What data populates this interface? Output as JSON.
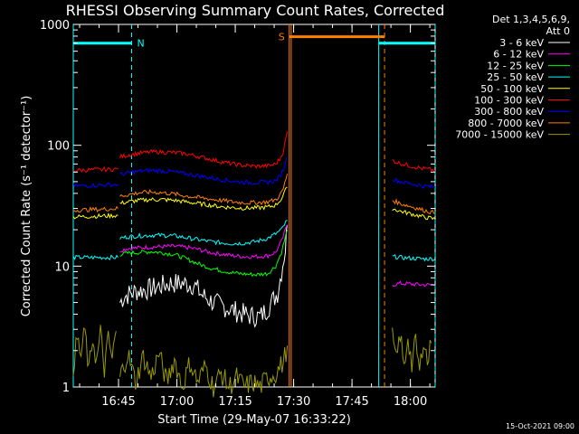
{
  "chart_data": {
    "type": "line",
    "title": "RHESSI Observing Summary Count Rates, Corrected",
    "xlabel": "Start Time (29-May-07 16:33:22)",
    "ylabel": "Corrected Count Rate (s⁻¹ detector⁻¹)",
    "yscale": "log",
    "ylim": [
      1,
      1000
    ],
    "xlim_minutes": [
      0,
      93
    ],
    "x_ticks": [
      {
        "label": "16:45",
        "t": 11.63
      },
      {
        "label": "17:00",
        "t": 26.63
      },
      {
        "label": "17:15",
        "t": 41.63
      },
      {
        "label": "17:30",
        "t": 56.63
      },
      {
        "label": "17:45",
        "t": 71.63
      },
      {
        "label": "18:00",
        "t": 86.63
      }
    ],
    "y_ticks": [
      {
        "label": "1",
        "v": 1
      },
      {
        "label": "10",
        "v": 10
      },
      {
        "label": "100",
        "v": 100
      },
      {
        "label": "1000",
        "v": 1000
      }
    ],
    "legend": {
      "header": [
        "Det 1,3,4,5,6,9,",
        "Att 0"
      ],
      "placement": "right"
    },
    "series": [
      {
        "name": "3 - 6 keV",
        "color": "#ffffff",
        "segments": [
          {
            "x": [
              12,
              13,
              16,
              19,
              22,
              25,
              28,
              31,
              33,
              36,
              39,
              42,
              45,
              48,
              50,
              52.5,
              53.5,
              54.5,
              55
            ],
            "y": [
              5,
              5.6,
              6.2,
              6.4,
              6.8,
              7.2,
              7.2,
              7,
              5.8,
              5,
              4.6,
              4.2,
              3.9,
              3.8,
              4.5,
              6,
              9,
              14,
              22
            ]
          }
        ]
      },
      {
        "name": "6 - 12 keV",
        "color": "#ff00ff",
        "segments": [
          {
            "x": [
              12,
              14,
              17,
              20,
              23,
              26,
              29,
              32,
              35,
              38,
              41,
              44,
              47,
              50,
              52,
              53.5,
              55
            ],
            "y": [
              13.5,
              14,
              14.2,
              14.4,
              14.5,
              14.6,
              14.3,
              13.8,
              13,
              12.6,
              12.2,
              12,
              12,
              12.2,
              13,
              16,
              22
            ]
          },
          {
            "x": [
              82,
              84,
              87,
              90,
              93
            ],
            "y": [
              7,
              7.2,
              7.1,
              7,
              7
            ]
          }
        ]
      },
      {
        "name": "12 - 25 keV",
        "color": "#00ff00",
        "segments": [
          {
            "x": [
              12,
              14,
              17,
              20,
              23,
              26,
              29,
              32,
              35,
              38,
              41,
              44,
              47,
              50,
              52,
              53.5,
              55
            ],
            "y": [
              12.5,
              12.8,
              13,
              13.2,
              12.9,
              12.5,
              11.5,
              10.5,
              9.7,
              9.2,
              8.8,
              8.6,
              8.5,
              8.7,
              10,
              13,
              20
            ]
          }
        ]
      },
      {
        "name": "25 - 50 keV",
        "color": "#00ffff",
        "segments": [
          {
            "x": [
              0,
              4,
              8,
              11.5
            ],
            "y": [
              11.8,
              11.8,
              11.8,
              11.8
            ]
          },
          {
            "x": [
              12,
              14,
              17,
              20,
              23,
              26,
              29,
              32,
              35,
              38,
              41,
              44,
              47,
              50,
              52,
              53.5,
              55
            ],
            "y": [
              17,
              17.5,
              17.8,
              18,
              18,
              17.8,
              17.2,
              16.6,
              16,
              15.6,
              15.4,
              15.5,
              16,
              17,
              18.5,
              20,
              24
            ]
          },
          {
            "x": [
              82,
              84,
              87,
              90,
              93
            ],
            "y": [
              12,
              11.8,
              11.6,
              11.5,
              11.5
            ]
          }
        ]
      },
      {
        "name": "50 - 100 keV",
        "color": "#ffff00",
        "segments": [
          {
            "x": [
              0,
              4,
              8,
              11.5
            ],
            "y": [
              25.5,
              25.8,
              26,
              26.3
            ]
          },
          {
            "x": [
              12,
              14,
              17,
              20,
              23,
              26,
              29,
              32,
              35,
              38,
              41,
              44,
              47,
              50,
              52,
              53.5,
              55
            ],
            "y": [
              33,
              34,
              35,
              35.6,
              35.5,
              35,
              34,
              33,
              32,
              31,
              30.5,
              30.2,
              30.3,
              30.8,
              32,
              36,
              45
            ]
          },
          {
            "x": [
              82,
              84,
              87,
              90,
              93
            ],
            "y": [
              30,
              28.5,
              27,
              25.5,
              24.5
            ]
          }
        ]
      },
      {
        "name": "100 - 300 keV",
        "color": "#ff0000",
        "segments": [
          {
            "x": [
              0,
              4,
              8,
              11.5
            ],
            "y": [
              62,
              62.5,
              63,
              63.5
            ]
          },
          {
            "x": [
              12,
              14,
              17,
              20,
              23,
              26,
              29,
              32,
              35,
              38,
              41,
              44,
              47,
              50,
              52,
              53,
              54,
              55
            ],
            "y": [
              80,
              83,
              86,
              88,
              88,
              87,
              85,
              81,
              77,
              73,
              70,
              68,
              67,
              67.5,
              70,
              76,
              90,
              130
            ]
          },
          {
            "x": [
              82,
              84,
              87,
              90,
              93
            ],
            "y": [
              75,
              71,
              67,
              64,
              62
            ]
          }
        ]
      },
      {
        "name": "300 - 800 keV",
        "color": "#0000ff",
        "segments": [
          {
            "x": [
              0,
              4,
              8,
              11.5
            ],
            "y": [
              46,
              46.5,
              47,
              47.5
            ]
          },
          {
            "x": [
              12,
              14,
              17,
              20,
              23,
              26,
              29,
              32,
              35,
              38,
              41,
              44,
              47,
              50,
              52,
              53,
              54,
              55
            ],
            "y": [
              57,
              59,
              61,
              62,
              61.5,
              60,
              58,
              56,
              54,
              52,
              50.5,
              49.5,
              49,
              49.5,
              51,
              55,
              63,
              80
            ]
          },
          {
            "x": [
              82,
              84,
              87,
              90,
              93
            ],
            "y": [
              53,
              50,
              48,
              46,
              45
            ]
          }
        ]
      },
      {
        "name": "800 - 7000 keV",
        "color": "#ff8000",
        "segments": [
          {
            "x": [
              0,
              4,
              8,
              11.5
            ],
            "y": [
              29,
              29.3,
              29.6,
              30
            ]
          },
          {
            "x": [
              12,
              14,
              17,
              20,
              23,
              26,
              29,
              32,
              35,
              38,
              41,
              44,
              47,
              50,
              52,
              53,
              54,
              55
            ],
            "y": [
              38,
              39,
              40.5,
              41,
              40.5,
              39.5,
              38,
              37,
              36,
              35,
              34,
              33.5,
              33.5,
              34,
              35.5,
              38,
              44,
              58
            ]
          },
          {
            "x": [
              82,
              84,
              87,
              90,
              93
            ],
            "y": [
              35,
              33,
              31,
              29,
              27.5
            ]
          }
        ]
      },
      {
        "name": "7000 - 15000 keV",
        "color": "#999900",
        "segments": [
          {
            "x": [
              0,
              1,
              2,
              3,
              4,
              5,
              6,
              7,
              8,
              9,
              10,
              11
            ],
            "y": [
              1.5,
              2.5,
              1.8,
              3,
              1.3,
              2.6,
              1.6,
              2.8,
              1.4,
              2.5,
              1.7,
              2.9
            ]
          },
          {
            "x": [
              12,
              14,
              16,
              18,
              20,
              22,
              24,
              26,
              28,
              30,
              32,
              34,
              36,
              38,
              40,
              42,
              44,
              46,
              48,
              50,
              52,
              54,
              55
            ],
            "y": [
              1.2,
              1.9,
              1.1,
              1.8,
              1.2,
              1.9,
              1.1,
              1.7,
              1.0,
              1.6,
              1.1,
              1.5,
              1.0,
              1.3,
              1.0,
              1.2,
              1.0,
              1.1,
              1.0,
              1.2,
              1.3,
              1.6,
              2.2
            ]
          },
          {
            "x": [
              82,
              83,
              84,
              85,
              86,
              87,
              88,
              89,
              90,
              91,
              92
            ],
            "y": [
              2.6,
              1.6,
              2.8,
              1.4,
              2.7,
              1.5,
              2.4,
              1.3,
              2.6,
              1.6,
              2.3
            ]
          }
        ]
      }
    ],
    "annotations": {
      "flags": [
        {
          "label": "N",
          "color": "#00ffff",
          "segments": [
            {
              "x0": 0,
              "x1": 15,
              "v": 700
            },
            {
              "x0": 78.5,
              "x1": 93,
              "v": 700
            }
          ]
        },
        {
          "label": "S",
          "color": "#ff8000",
          "segments": [
            {
              "x0": 55.5,
              "x1": 80,
              "v": 790
            }
          ]
        }
      ],
      "vlines": [
        {
          "t": 0,
          "color": "#00ffff",
          "style": "solid"
        },
        {
          "t": 15,
          "color": "#00ffff",
          "style": "dashed"
        },
        {
          "t": 56,
          "color": "#ff8000",
          "style": "solid"
        },
        {
          "t": 55.5,
          "color": "#ff8000",
          "style": "solid"
        },
        {
          "t": 78.5,
          "color": "#00ffff",
          "style": "solid"
        },
        {
          "t": 80,
          "color": "#ff8000",
          "style": "dashed"
        },
        {
          "t": 93,
          "color": "#00ffff",
          "style": "dashed"
        }
      ]
    },
    "footer_date": "15-Oct-2021 09:00"
  }
}
